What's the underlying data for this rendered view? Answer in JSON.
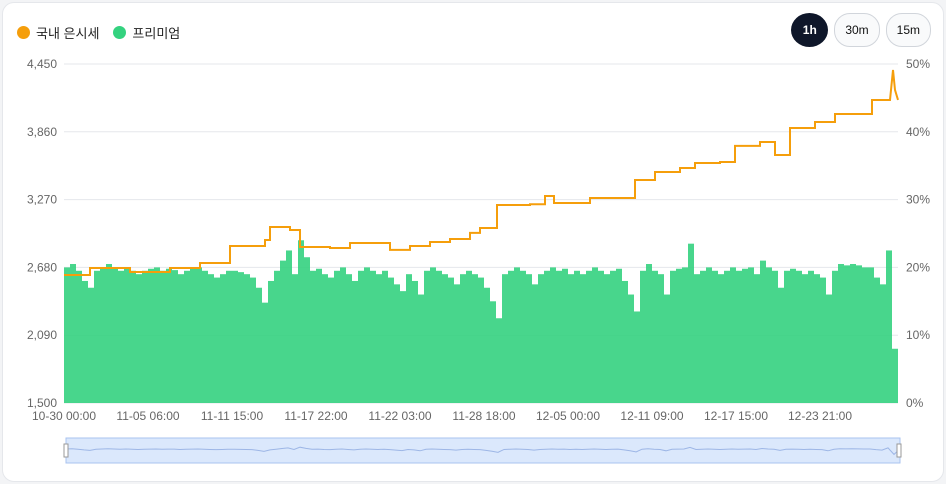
{
  "legend": [
    {
      "label": "국내 은시세",
      "color": "#f59e0b"
    },
    {
      "label": "프리미엄",
      "color": "#34d27f"
    }
  ],
  "interval_buttons": [
    {
      "label": "1h",
      "active": true
    },
    {
      "label": "30m",
      "active": false
    },
    {
      "label": "15m",
      "active": false
    }
  ],
  "chart_data": {
    "type": "bar+line",
    "x_tick_labels": [
      "10-30 00:00",
      "11-05 06:00",
      "11-11 15:00",
      "11-17 22:00",
      "11-22 03:00",
      "11-28 18:00",
      "12-05 00:00",
      "12-11 09:00",
      "12-17 15:00",
      "12-23 21:00"
    ],
    "x_range": [
      0,
      834
    ],
    "y_left": {
      "ticks": [
        "1,500",
        "2,090",
        "2,680",
        "3,270",
        "3,860",
        "4,450"
      ],
      "range": [
        1500,
        4450
      ]
    },
    "y_right": {
      "ticks": [
        "0%",
        "10%",
        "20%",
        "30%",
        "40%",
        "50%"
      ],
      "range": [
        0,
        50
      ]
    },
    "grid": true,
    "series": [
      {
        "name": "국내 은시세",
        "type": "line",
        "axis": "left",
        "color": "#f59e0b",
        "points": [
          [
            0,
            2614
          ],
          [
            26,
            2614
          ],
          [
            26,
            2675
          ],
          [
            66,
            2675
          ],
          [
            66,
            2640
          ],
          [
            106,
            2640
          ],
          [
            106,
            2675
          ],
          [
            136,
            2675
          ],
          [
            136,
            2718
          ],
          [
            166,
            2718
          ],
          [
            166,
            2866
          ],
          [
            201,
            2866
          ],
          [
            201,
            2918
          ],
          [
            206,
            2918
          ],
          [
            206,
            3032
          ],
          [
            226,
            3032
          ],
          [
            226,
            3005
          ],
          [
            236,
            3005
          ],
          [
            236,
            2857
          ],
          [
            266,
            2857
          ],
          [
            266,
            2849
          ],
          [
            286,
            2849
          ],
          [
            286,
            2892
          ],
          [
            326,
            2892
          ],
          [
            326,
            2832
          ],
          [
            346,
            2832
          ],
          [
            346,
            2866
          ],
          [
            366,
            2866
          ],
          [
            366,
            2901
          ],
          [
            386,
            2901
          ],
          [
            386,
            2927
          ],
          [
            406,
            2927
          ],
          [
            406,
            2980
          ],
          [
            416,
            2980
          ],
          [
            416,
            3023
          ],
          [
            433,
            3023
          ],
          [
            433,
            3223
          ],
          [
            466,
            3223
          ],
          [
            466,
            3230
          ],
          [
            481,
            3230
          ],
          [
            481,
            3301
          ],
          [
            490,
            3301
          ],
          [
            490,
            3240
          ],
          [
            526,
            3240
          ],
          [
            526,
            3284
          ],
          [
            571,
            3284
          ],
          [
            571,
            3441
          ],
          [
            591,
            3441
          ],
          [
            591,
            3510
          ],
          [
            616,
            3510
          ],
          [
            616,
            3545
          ],
          [
            631,
            3545
          ],
          [
            631,
            3589
          ],
          [
            656,
            3589
          ],
          [
            656,
            3597
          ],
          [
            671,
            3597
          ],
          [
            671,
            3737
          ],
          [
            696,
            3737
          ],
          [
            696,
            3771
          ],
          [
            711,
            3771
          ],
          [
            711,
            3658
          ],
          [
            726,
            3658
          ],
          [
            726,
            3893
          ],
          [
            751,
            3893
          ],
          [
            751,
            3945
          ],
          [
            771,
            3945
          ],
          [
            771,
            4015
          ],
          [
            808,
            4015
          ],
          [
            808,
            4137
          ],
          [
            826,
            4137
          ],
          [
            829,
            4398
          ],
          [
            831,
            4224
          ],
          [
            834,
            4137
          ]
        ]
      },
      {
        "name": "프리미엄",
        "type": "bar",
        "axis": "right",
        "color": "#34d27f",
        "step": 6,
        "values": [
          20,
          20.5,
          19.5,
          18,
          17,
          19.5,
          20,
          20.5,
          20,
          19.5,
          20,
          19.5,
          19,
          19.5,
          19.8,
          20,
          19.5,
          19.8,
          19.6,
          19,
          19.5,
          19.8,
          20,
          19.5,
          19,
          18.5,
          19,
          19.5,
          19.5,
          19.3,
          19,
          18.5,
          17,
          14.8,
          18,
          19.5,
          21,
          22.5,
          19,
          24,
          21.5,
          19.5,
          19.8,
          19,
          18.5,
          19.5,
          20,
          19,
          18,
          19.5,
          20,
          19.5,
          19,
          19.5,
          18.5,
          17.5,
          16.5,
          19,
          18,
          16,
          19.5,
          20,
          19.5,
          19,
          18.5,
          17.5,
          19,
          19.5,
          19,
          18.5,
          17,
          15,
          12.5,
          19,
          19.5,
          20,
          19.5,
          19,
          17.5,
          19,
          19.5,
          20,
          19.5,
          19.8,
          19,
          19.5,
          19,
          19.5,
          20,
          19.5,
          19,
          19.5,
          19.8,
          18,
          16,
          13.5,
          19.5,
          20.5,
          19.5,
          19,
          16,
          19.5,
          19.8,
          20,
          23.5,
          19,
          19.5,
          20,
          19.5,
          19,
          19.5,
          20,
          19.5,
          19.8,
          20,
          19,
          21,
          20,
          19.5,
          17,
          19.5,
          19.8,
          19.5,
          19,
          19.5,
          19,
          18.5,
          16,
          19.5,
          20.5,
          20.3,
          20.5,
          20.3,
          20,
          20,
          18.5,
          17.5,
          22.5,
          8,
          20
        ]
      }
    ]
  }
}
